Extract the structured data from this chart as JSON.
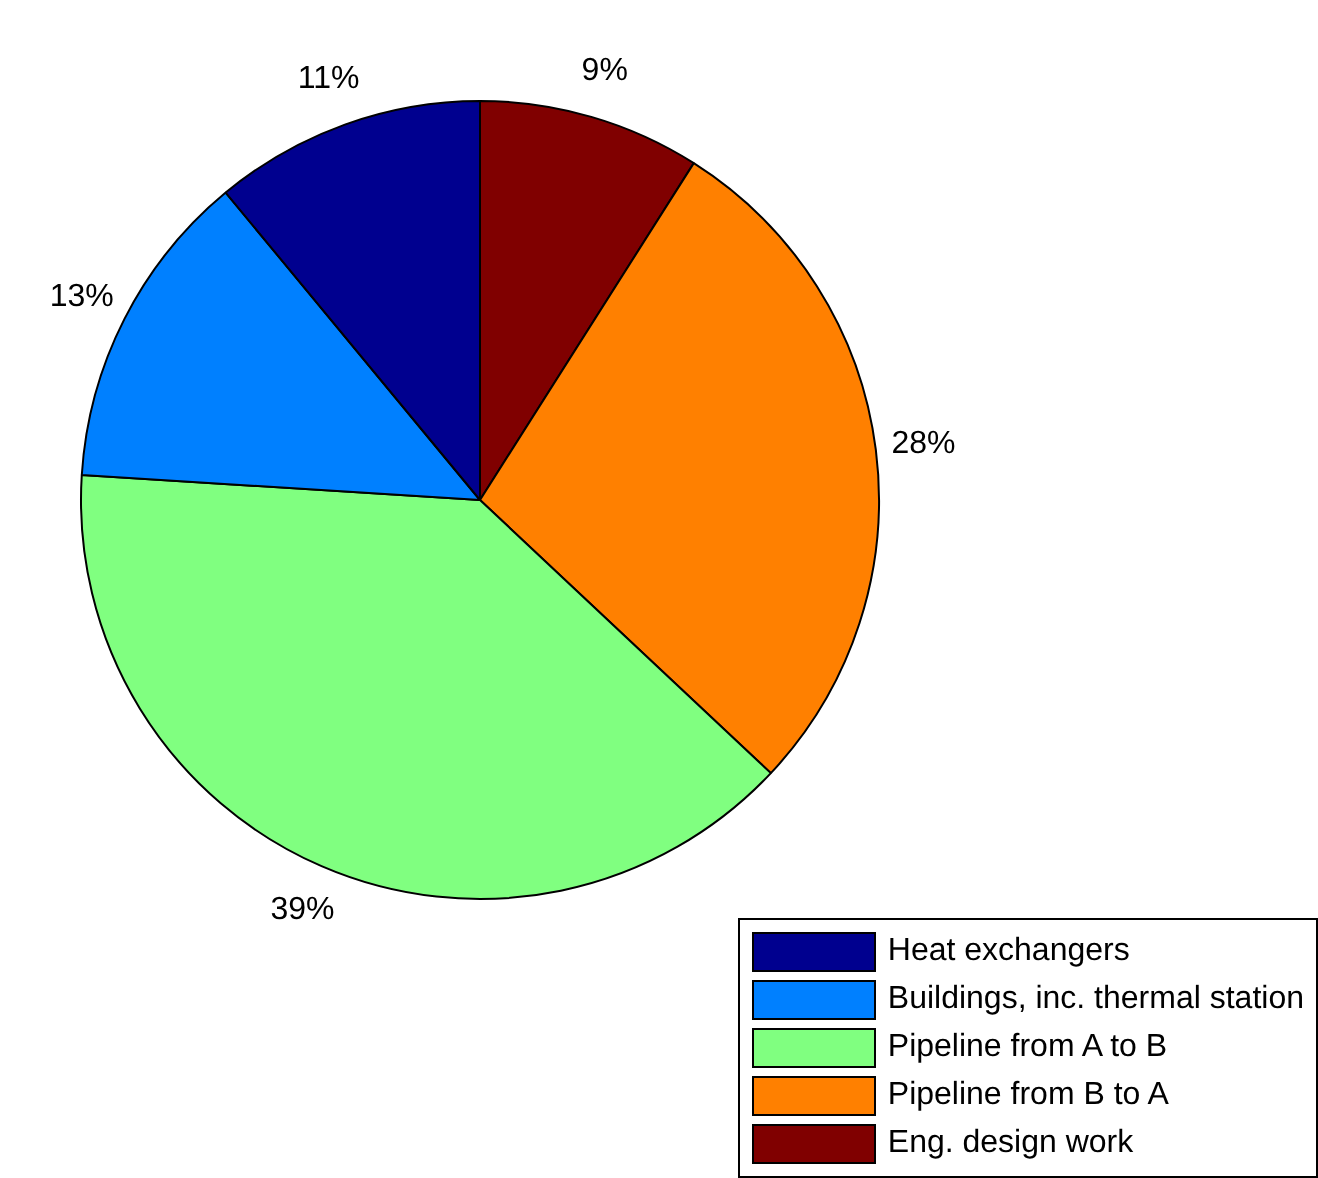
{
  "chart_data": {
    "type": "pie",
    "categories": [
      "Heat exchangers",
      "Buildings, inc. thermal station",
      "Pipeline from A to B",
      "Pipeline from B to A",
      "Eng. design work"
    ],
    "values": [
      11,
      13,
      39,
      28,
      9
    ],
    "colors": [
      "#00008f",
      "#0080ff",
      "#80ff80",
      "#ff8000",
      "#800000"
    ],
    "value_labels": [
      "11%",
      "13%",
      "39%",
      "28%",
      "9%"
    ],
    "legend": "bottom right"
  }
}
